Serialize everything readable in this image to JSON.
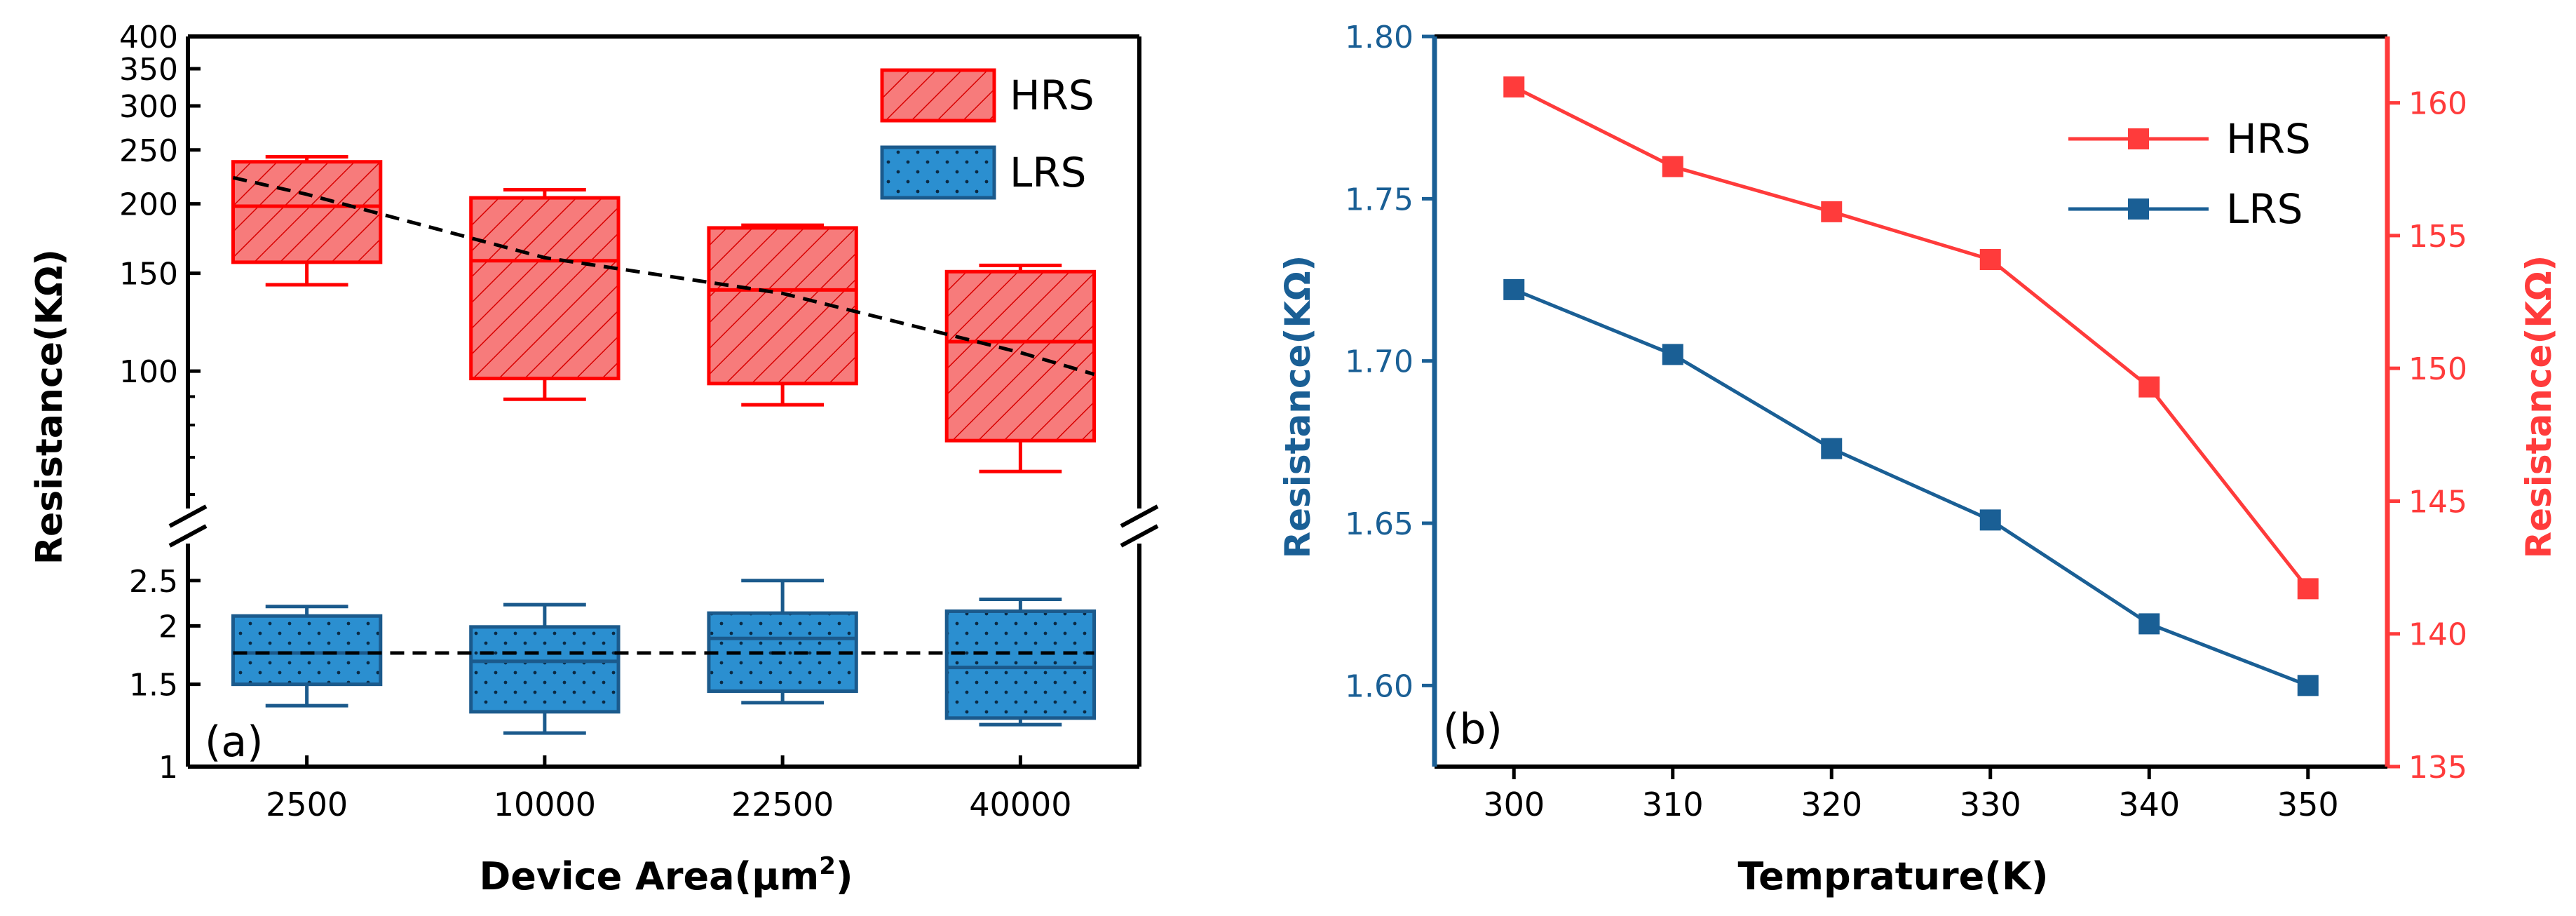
{
  "chart_data": [
    {
      "type": "box",
      "panel_label": "(a)",
      "xlabel": "Device Area(μm",
      "xlabel_sup": "2",
      "xlabel_close": ")",
      "ylabel": "Resistance(KΩ)",
      "categories": [
        "2500",
        "10000",
        "22500",
        "40000"
      ],
      "yscale": "log-broken",
      "ylim_upper": [
        60,
        400
      ],
      "ylim_lower": [
        1,
        2.8
      ],
      "yticks_upper": [
        "100",
        "150",
        "200",
        "250",
        "300",
        "350",
        "400"
      ],
      "yticks_lower": [
        "1",
        "1.5",
        "2",
        "2.5"
      ],
      "legend": [
        {
          "label": "HRS",
          "color": "#ff0000",
          "fill": "#f77b7b",
          "pattern": "hatch"
        },
        {
          "label": "LRS",
          "color": "#1b5a8c",
          "fill": "#2b8fd0",
          "pattern": "dots"
        }
      ],
      "series": [
        {
          "name": "HRS",
          "boxes": [
            {
              "min": 143,
              "q1": 157,
              "median": 198,
              "q3": 238,
              "max": 243
            },
            {
              "min": 89,
              "q1": 97,
              "median": 158,
              "q3": 205,
              "max": 212
            },
            {
              "min": 87,
              "q1": 95,
              "median": 140,
              "q3": 181,
              "max": 183
            },
            {
              "min": 66,
              "q1": 75,
              "median": 113,
              "q3": 151,
              "max": 155
            }
          ],
          "trend": [
            208,
            160,
            138,
            108
          ]
        },
        {
          "name": "LRS",
          "boxes": [
            {
              "min": 1.35,
              "q1": 1.5,
              "median": 1.75,
              "q3": 2.1,
              "max": 2.2
            },
            {
              "min": 1.18,
              "q1": 1.31,
              "median": 1.68,
              "q3": 1.99,
              "max": 2.22
            },
            {
              "min": 1.37,
              "q1": 1.45,
              "median": 1.88,
              "q3": 2.13,
              "max": 2.5
            },
            {
              "min": 1.23,
              "q1": 1.27,
              "median": 1.63,
              "q3": 2.15,
              "max": 2.28
            }
          ],
          "trend": [
            1.75,
            1.75,
            1.75,
            1.75
          ]
        }
      ]
    },
    {
      "type": "line",
      "panel_label": "(b)",
      "xlabel": "Temprature(K)",
      "ylabel_left": "Resistance(KΩ)",
      "ylabel_right": "Resistance(KΩ)",
      "x": [
        300,
        310,
        320,
        330,
        340,
        350
      ],
      "xlim": [
        295,
        355
      ],
      "xticks": [
        "300",
        "310",
        "320",
        "330",
        "340",
        "350"
      ],
      "ylim_left": [
        1.575,
        1.8
      ],
      "yticks_left": [
        "1.60",
        "1.65",
        "1.70",
        "1.75",
        "1.80"
      ],
      "ylim_right": [
        135,
        162.5
      ],
      "yticks_right": [
        "135",
        "140",
        "145",
        "150",
        "155",
        "160"
      ],
      "left_color": "#1a5f95",
      "right_color": "#ff3b3b",
      "series": [
        {
          "name": "HRS",
          "axis": "right",
          "color": "#ff3b3b",
          "values": [
            160.6,
            157.6,
            155.9,
            154.1,
            149.3,
            141.7
          ]
        },
        {
          "name": "LRS",
          "axis": "left",
          "color": "#1a5f95",
          "values": [
            1.722,
            1.702,
            1.673,
            1.651,
            1.619,
            1.6
          ]
        }
      ]
    }
  ]
}
